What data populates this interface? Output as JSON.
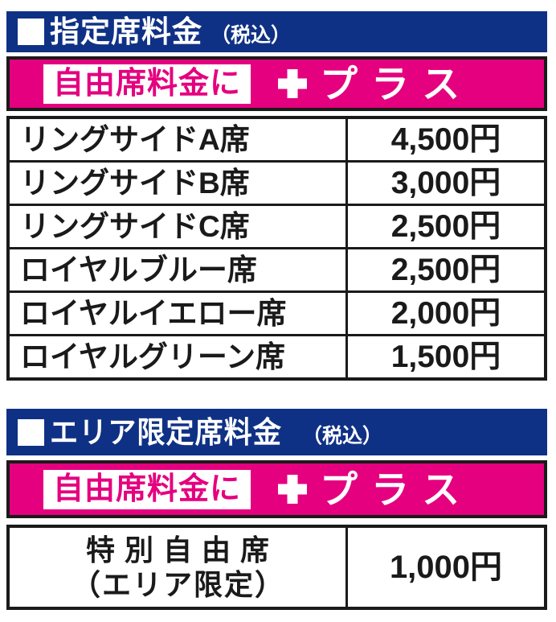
{
  "colors": {
    "navy_header": "#0f3185",
    "magenta_banner": "#e4007f",
    "border_black": "#1a1a1a",
    "text_black": "#1a1a1a",
    "white": "#ffffff"
  },
  "icons": {
    "bullet": "filled-square-icon",
    "plus": "plus-icon"
  },
  "plus_banner": {
    "base_label": "自由席料金に",
    "plus_label": "プラス"
  },
  "sections": [
    {
      "title": "指定席料金",
      "tax_note": "（税込）",
      "rows": [
        {
          "seat": "リングサイドA席",
          "price": "4,500円"
        },
        {
          "seat": "リングサイドB席",
          "price": "3,000円"
        },
        {
          "seat": "リングサイドC席",
          "price": "2,500円"
        },
        {
          "seat": "ロイヤルブルー席",
          "price": "2,500円"
        },
        {
          "seat": "ロイヤルイエロー席",
          "price": "2,000円"
        },
        {
          "seat": "ロイヤルグリーン席",
          "price": "1,500円"
        }
      ]
    },
    {
      "title": "エリア限定席料金",
      "tax_note": "（税込）",
      "rows": [
        {
          "seat_line1": "特別自由席",
          "seat_line2": "（エリア限定）",
          "price": "1,000円"
        }
      ]
    }
  ]
}
